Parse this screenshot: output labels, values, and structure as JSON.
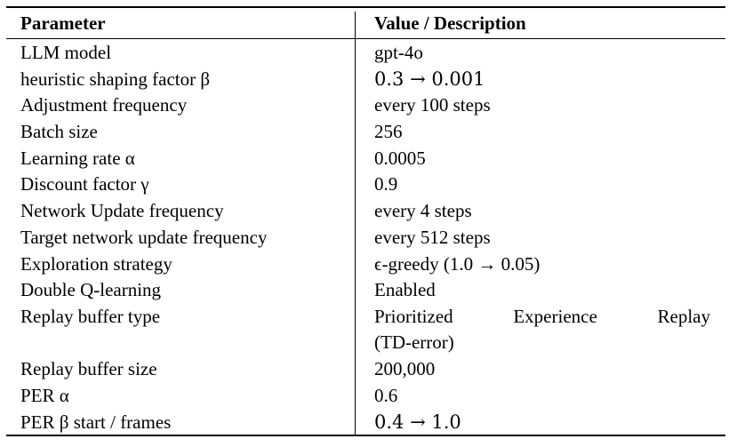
{
  "table": {
    "headers": {
      "parameter": "Parameter",
      "value": "Value / Description"
    },
    "rows": [
      {
        "parameter": "LLM model",
        "value": "gpt-4o"
      },
      {
        "parameter": "heuristic shaping factor β",
        "value": "0.3 → 0.001"
      },
      {
        "parameter": "Adjustment frequency",
        "value": "every 100 steps"
      },
      {
        "parameter": "Batch size",
        "value": "256"
      },
      {
        "parameter": "Learning rate α",
        "value": "0.0005"
      },
      {
        "parameter": "Discount factor γ",
        "value": "0.9"
      },
      {
        "parameter": "Network Update frequency",
        "value": "every 4 steps"
      },
      {
        "parameter": "Target network update frequency",
        "value": "every 512 steps"
      },
      {
        "parameter": "Exploration strategy",
        "value": "ϵ-greedy (1.0 → 0.05)"
      },
      {
        "parameter": "Double Q-learning",
        "value": "Enabled"
      },
      {
        "parameter": "Replay buffer type",
        "value": "Prioritized Experience Replay",
        "value_line2": "(TD-error)"
      },
      {
        "parameter": "Replay buffer size",
        "value": "200,000"
      },
      {
        "parameter": "PER α",
        "value": "0.6"
      },
      {
        "parameter": "PER β start / frames",
        "value": "0.4 → 1.0"
      }
    ]
  }
}
